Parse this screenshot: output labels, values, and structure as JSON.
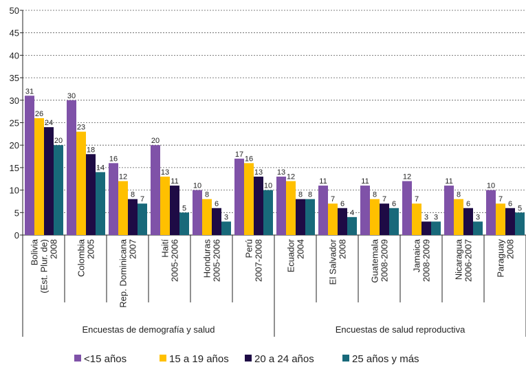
{
  "chart_data": {
    "type": "bar",
    "categories": [
      [
        "Bolivia",
        "(Est. Plur. de)",
        "2008"
      ],
      [
        "Colombia",
        "2005"
      ],
      [
        "Rep. Dominicana",
        "2007"
      ],
      [
        "Haití",
        "2005-2006"
      ],
      [
        "Honduras",
        "2005-2006"
      ],
      [
        "Perú",
        "2007-2008"
      ],
      [
        "Ecuador",
        "2004"
      ],
      [
        "El Salvador",
        "2008"
      ],
      [
        "Guatemala",
        "2008-2009"
      ],
      [
        "Jamaica",
        "2008-2009"
      ],
      [
        "Nicaragua",
        "2006-2007"
      ],
      [
        "Paraguay",
        "2008"
      ]
    ],
    "groups": [
      {
        "label": "Encuestas de demografía y salud",
        "count": 6
      },
      {
        "label": "Encuestas de salud reproductiva",
        "count": 6
      }
    ],
    "series": [
      {
        "name": "<15 años",
        "color": "#7f52a8",
        "values": [
          31,
          30,
          16,
          20,
          10,
          17,
          13,
          11,
          11,
          12,
          11,
          10
        ]
      },
      {
        "name": "15 a 19 años",
        "color": "#ffc000",
        "values": [
          26,
          23,
          12,
          13,
          8,
          16,
          12,
          7,
          8,
          7,
          8,
          7
        ]
      },
      {
        "name": "20 a 24 años",
        "color": "#1e0b45",
        "values": [
          24,
          18,
          8,
          11,
          6,
          13,
          8,
          6,
          7,
          3,
          6,
          6
        ]
      },
      {
        "name": "25 años y más",
        "color": "#18697a",
        "values": [
          20,
          14,
          7,
          5,
          3,
          10,
          8,
          4,
          6,
          3,
          3,
          5
        ]
      }
    ],
    "ylim": [
      0,
      50
    ],
    "yticks": [
      0,
      5,
      10,
      15,
      20,
      25,
      30,
      35,
      40,
      45,
      50
    ],
    "grid": true,
    "legend": "bottom"
  }
}
